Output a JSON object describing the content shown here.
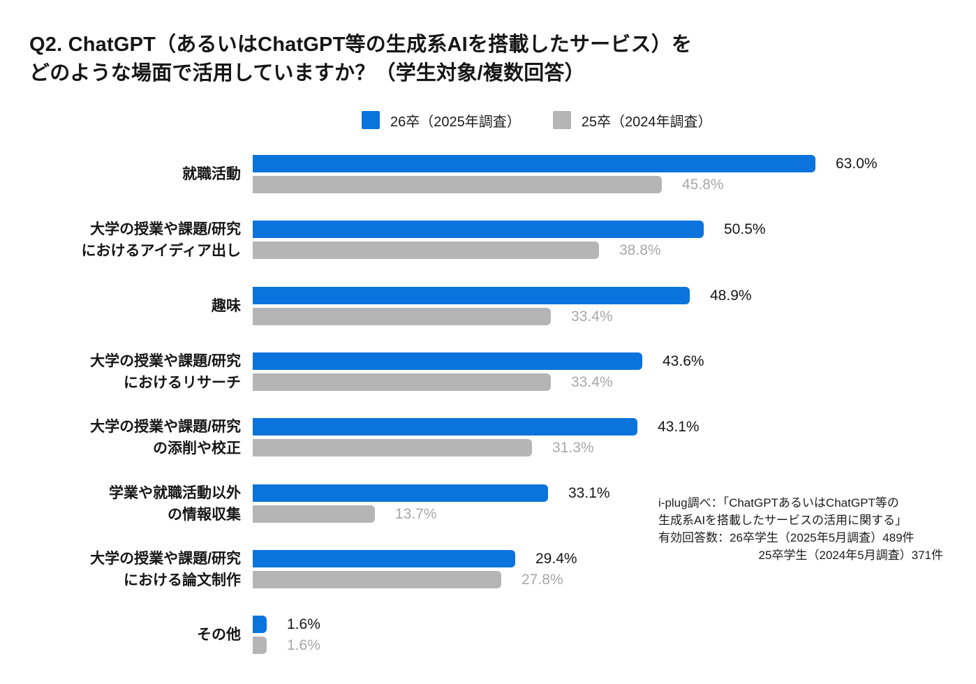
{
  "title": {
    "line1": "Q2. ChatGPT（あるいはChatGPT等の生成系AIを搭載したサービス）を",
    "line2": "どのような場面で活用していますか？（学生対象/複数回答）"
  },
  "colors": {
    "series_primary": "#0B74DC",
    "series_secondary": "#B5B5B5",
    "value_primary_text": "#161616",
    "value_secondary_text": "#A8A8A8",
    "background": "#FFFFFF"
  },
  "footnote": {
    "lines": [
      "i-plug調べ：「ChatGPTあるいはChatGPT等の",
      "生成系AIを搭載したサービスの活用に関する」",
      "有効回答数：26卒学生（2025年5月調査）489件",
      "25卒学生（2024年5月調査）371件"
    ]
  },
  "chart_data": {
    "type": "bar",
    "orientation": "horizontal",
    "title": "Q2. ChatGPT（あるいはChatGPT等の生成系AIを搭載したサービス）をどのような場面で活用していますか？（学生対象/複数回答）",
    "value_suffix": "%",
    "xlim": [
      0,
      63
    ],
    "grid": false,
    "legend_position": "top",
    "categories": [
      [
        "就職活動"
      ],
      [
        "大学の授業や課題/研究",
        "におけるアイディア出し"
      ],
      [
        "趣味"
      ],
      [
        "大学の授業や課題/研究",
        "におけるリサーチ"
      ],
      [
        "大学の授業や課題/研究",
        "の添削や校正"
      ],
      [
        "学業や就職活動以外",
        "の情報収集"
      ],
      [
        "大学の授業や課題/研究",
        "における論文制作"
      ],
      [
        "その他"
      ]
    ],
    "series": [
      {
        "name": "26卒（2025年調査）",
        "color": "#0B74DC",
        "values": [
          63.0,
          50.5,
          48.9,
          43.6,
          43.1,
          33.1,
          29.4,
          1.6
        ]
      },
      {
        "name": "25卒（2024年調査）",
        "color": "#B5B5B5",
        "values": [
          45.8,
          38.8,
          33.4,
          33.4,
          31.3,
          13.7,
          27.8,
          1.6
        ]
      }
    ]
  }
}
